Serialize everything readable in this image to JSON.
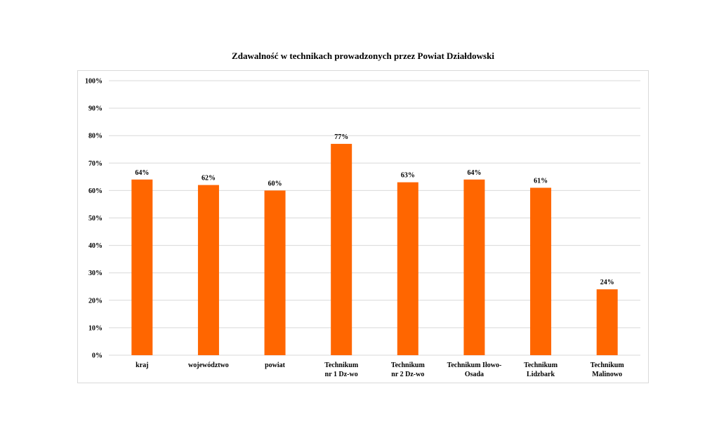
{
  "chart_data": {
    "type": "bar",
    "title": "Zdawalność w technikach prowadzonych przez Powiat Działdowski",
    "categories": [
      [
        "kraj"
      ],
      [
        "województwo"
      ],
      [
        "powiat"
      ],
      [
        "Technikum",
        "nr 1 Dz-wo"
      ],
      [
        "Technikum",
        "nr 2 Dz-wo"
      ],
      [
        "Technikum Iłowo-",
        "Osada"
      ],
      [
        "Technikum",
        "Lidzbark"
      ],
      [
        "Technikum",
        "Malinowo"
      ]
    ],
    "values": [
      64,
      62,
      60,
      77,
      63,
      64,
      61,
      24
    ],
    "data_labels": [
      "64%",
      "62%",
      "60%",
      "77%",
      "63%",
      "64%",
      "61%",
      "24%"
    ],
    "ylim": [
      0,
      100
    ],
    "yticks": [
      "0%",
      "10%",
      "20%",
      "30%",
      "40%",
      "50%",
      "60%",
      "70%",
      "80%",
      "90%",
      "100%"
    ],
    "grid": true,
    "legend": "none",
    "bar_color": "#ff6600",
    "grid_color": "#d9d9d9"
  }
}
